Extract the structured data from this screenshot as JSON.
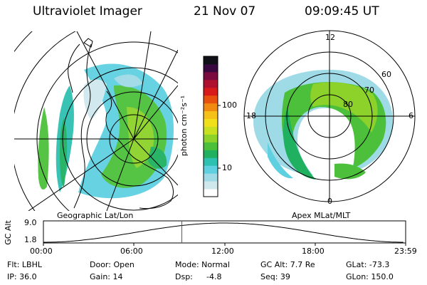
{
  "header": {
    "instrument": "Ultraviolet Imager",
    "date": "21 Nov 07",
    "time": "09:09:45 UT"
  },
  "geo_map": {
    "caption": "Geographic Lat/Lon"
  },
  "polar_map": {
    "caption": "Apex MLat/MLT",
    "mlt_labels": [
      "12",
      "18",
      "6",
      "0"
    ],
    "mlat_labels": [
      "60",
      "70",
      "80"
    ]
  },
  "colorbar": {
    "unit": "photon cm⁻²s⁻¹",
    "tick_labels": [
      "100",
      "10"
    ],
    "colors": [
      "#ffffff",
      "#cfe8ee",
      "#9fdbe6",
      "#5fd0e0",
      "#2ec0b0",
      "#1fb060",
      "#4cc03a",
      "#8cd22a",
      "#c8e020",
      "#f0e01a",
      "#f5c018",
      "#f08a10",
      "#e85010",
      "#d81a1a",
      "#b01030",
      "#7a0a40",
      "#3a0840",
      "#101018"
    ]
  },
  "orbit": {
    "ylabel": "GC Alt",
    "y_max": "9.0",
    "y_min": "1.8",
    "x_labels": [
      "00:00",
      "06:00",
      "12:00",
      "18:00",
      "23:59"
    ],
    "marker_time": "09:09:45",
    "marker_color": "#e02020"
  },
  "status": {
    "flt": "Flt: LBHL",
    "door": "Door: Open",
    "mode": "Mode: Normal",
    "gc_alt": "GC Alt: 7.7 Re",
    "glat": "GLat: -73.3",
    "ip": "IP: 36.0",
    "gain": "Gain: 14",
    "dsp_label": "Dsp:",
    "dsp_value": "-4.8",
    "seq": "Seq: 39",
    "glon": "GLon: 150.0"
  }
}
